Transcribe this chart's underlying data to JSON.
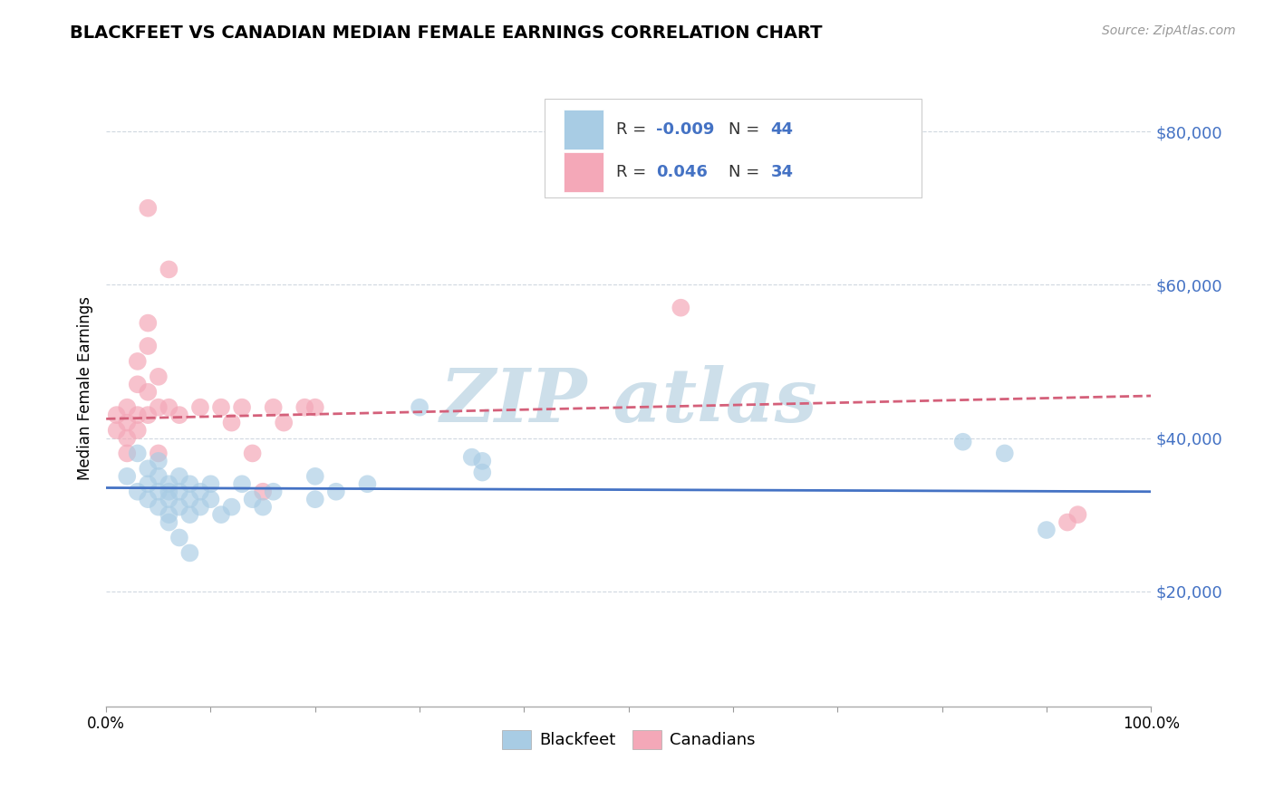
{
  "title": "BLACKFEET VS CANADIAN MEDIAN FEMALE EARNINGS CORRELATION CHART",
  "source": "Source: ZipAtlas.com",
  "ylabel": "Median Female Earnings",
  "yticks": [
    20000,
    40000,
    60000,
    80000
  ],
  "ytick_labels": [
    "$20,000",
    "$40,000",
    "$60,000",
    "$80,000"
  ],
  "xmin": 0.0,
  "xmax": 1.0,
  "ymin": 5000,
  "ymax": 88000,
  "legend_r1": "-0.009",
  "legend_n1": "44",
  "legend_r2": "0.046",
  "legend_n2": "34",
  "blackfeet_color": "#a8cce4",
  "canadians_color": "#f4a8b8",
  "trend_blue": "#4472c4",
  "trend_pink": "#d4607a",
  "grid_color": "#d0d8e0",
  "ytick_color": "#4472c4",
  "watermark_color": "#c8dce8",
  "blackfeet_points": [
    [
      0.02,
      35000
    ],
    [
      0.03,
      38000
    ],
    [
      0.03,
      33000
    ],
    [
      0.04,
      36000
    ],
    [
      0.04,
      34000
    ],
    [
      0.04,
      32000
    ],
    [
      0.05,
      37000
    ],
    [
      0.05,
      35000
    ],
    [
      0.05,
      33000
    ],
    [
      0.05,
      31000
    ],
    [
      0.06,
      34000
    ],
    [
      0.06,
      33000
    ],
    [
      0.06,
      32000
    ],
    [
      0.06,
      30000
    ],
    [
      0.06,
      29000
    ],
    [
      0.07,
      35000
    ],
    [
      0.07,
      33000
    ],
    [
      0.07,
      31000
    ],
    [
      0.07,
      27000
    ],
    [
      0.08,
      34000
    ],
    [
      0.08,
      32000
    ],
    [
      0.08,
      30000
    ],
    [
      0.08,
      25000
    ],
    [
      0.09,
      33000
    ],
    [
      0.09,
      31000
    ],
    [
      0.1,
      34000
    ],
    [
      0.1,
      32000
    ],
    [
      0.11,
      30000
    ],
    [
      0.12,
      31000
    ],
    [
      0.13,
      34000
    ],
    [
      0.14,
      32000
    ],
    [
      0.15,
      31000
    ],
    [
      0.16,
      33000
    ],
    [
      0.2,
      35000
    ],
    [
      0.2,
      32000
    ],
    [
      0.22,
      33000
    ],
    [
      0.25,
      34000
    ],
    [
      0.3,
      44000
    ],
    [
      0.35,
      37500
    ],
    [
      0.36,
      37000
    ],
    [
      0.36,
      35500
    ],
    [
      0.82,
      39500
    ],
    [
      0.86,
      38000
    ],
    [
      0.9,
      28000
    ]
  ],
  "canadians_points": [
    [
      0.01,
      43000
    ],
    [
      0.01,
      41000
    ],
    [
      0.02,
      44000
    ],
    [
      0.02,
      42000
    ],
    [
      0.02,
      40000
    ],
    [
      0.02,
      38000
    ],
    [
      0.03,
      50000
    ],
    [
      0.03,
      47000
    ],
    [
      0.03,
      43000
    ],
    [
      0.03,
      41000
    ],
    [
      0.04,
      55000
    ],
    [
      0.04,
      52000
    ],
    [
      0.04,
      46000
    ],
    [
      0.04,
      43000
    ],
    [
      0.05,
      48000
    ],
    [
      0.05,
      44000
    ],
    [
      0.05,
      38000
    ],
    [
      0.06,
      62000
    ],
    [
      0.06,
      44000
    ],
    [
      0.07,
      43000
    ],
    [
      0.09,
      44000
    ],
    [
      0.11,
      44000
    ],
    [
      0.12,
      42000
    ],
    [
      0.13,
      44000
    ],
    [
      0.14,
      38000
    ],
    [
      0.15,
      33000
    ],
    [
      0.16,
      44000
    ],
    [
      0.17,
      42000
    ],
    [
      0.19,
      44000
    ],
    [
      0.2,
      44000
    ],
    [
      0.04,
      70000
    ],
    [
      0.55,
      57000
    ],
    [
      0.92,
      29000
    ],
    [
      0.93,
      30000
    ]
  ],
  "bf_trend_y0": 33500,
  "bf_trend_y1": 33000,
  "ca_trend_y0": 42500,
  "ca_trend_y1": 45500
}
